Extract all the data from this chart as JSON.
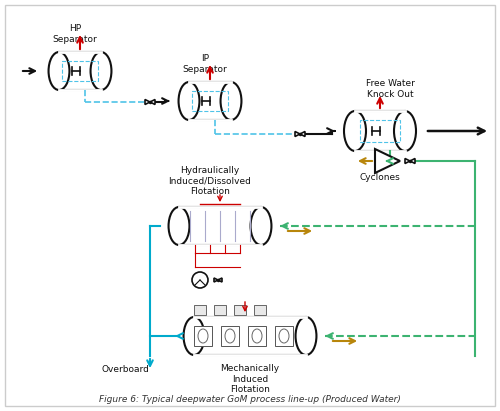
{
  "title": "Figure 6: Typical deepwater GoM process line-up (Produced Water)",
  "bg_color": "#f5f5f5",
  "separator_color": "#222222",
  "dashed_blue": "#4fc3e8",
  "green_dashed": "#3cb371",
  "red_color": "#cc0000",
  "orange_color": "#b8860b",
  "black_color": "#111111",
  "cyan_color": "#00aacc",
  "labels": {
    "hp": "HP\nSeparator",
    "ip": "IP\nSeparator",
    "fwko": "Free Water\nKnock Out",
    "hidf": "Hydraulically\nInduced/Dissolved\nFlotation",
    "cyclones": "Cyclones",
    "mif": "Mechanically\nInduced\nFlotation",
    "overboard": "Overboard"
  }
}
